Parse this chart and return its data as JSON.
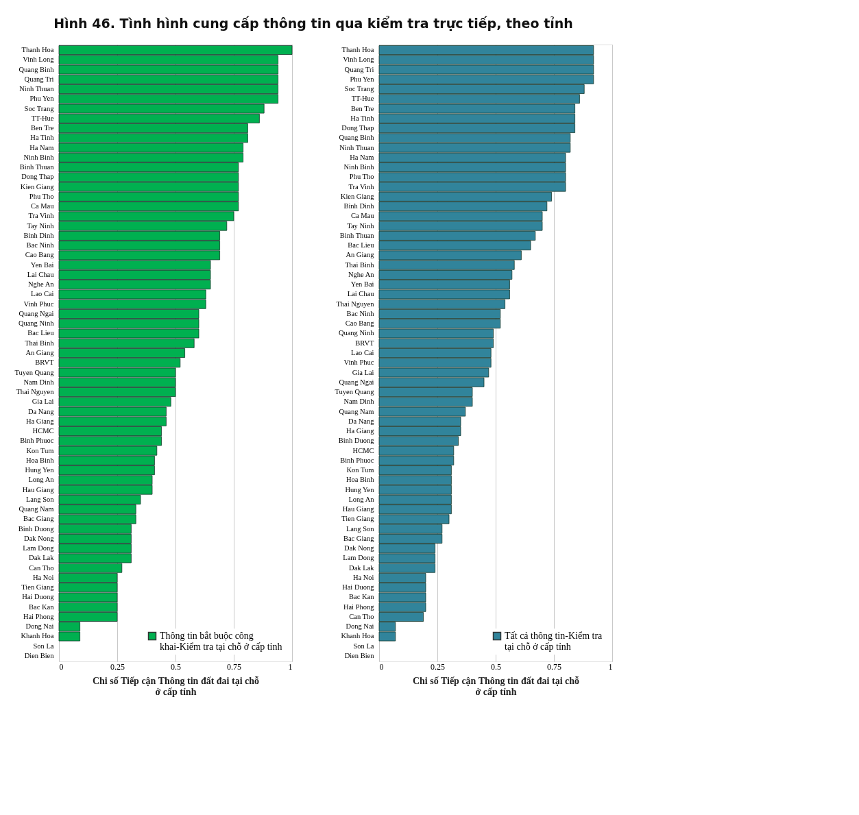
{
  "chart_data": [
    {
      "type": "bar",
      "orientation": "horizontal",
      "title": "Hình 46. Tình hình cung cấp thông tin qua kiểm tra trực tiếp, theo tỉnh",
      "xlabel": "Chi số Tiếp cận Thông tin đất đai tại chỗ ở cấp tỉnh",
      "grid": "x",
      "legend": "bottom right",
      "xlim": [
        0,
        1
      ],
      "xticks": [
        0,
        0.25,
        0.5,
        0.75,
        1
      ],
      "categories": [
        "Thanh Hoa",
        "Vinh Long",
        "Quang Binh",
        "Quang Tri",
        "Ninh Thuan",
        "Phu Yen",
        "Soc Trang",
        "TT-Hue",
        "Ben Tre",
        "Ha Tinh",
        "Ha Nam",
        "Ninh Binh",
        "Binh Thuan",
        "Dong Thap",
        "Kien Giang",
        "Phu Tho",
        "Ca Mau",
        "Tra Vinh",
        "Tay Ninh",
        "Binh Dinh",
        "Bac Ninh",
        "Cao Bang",
        "Yen Bai",
        "Lai Chau",
        "Nghe An",
        "Lao Cai",
        "Vinh Phuc",
        "Quang Ngai",
        "Quang Ninh",
        "Bac Lieu",
        "Thai Binh",
        "An Giang",
        "BRVT",
        "Tuyen Quang",
        "Nam Dinh",
        "Thai Nguyen",
        "Gia Lai",
        "Da Nang",
        "Ha Giang",
        "HCMC",
        "Binh Phuoc",
        "Kon Tum",
        "Hoa Binh",
        "Hung Yen",
        "Long An",
        "Hau Giang",
        "Lang Son",
        "Quang Nam",
        "Bac Giang",
        "Binh Duong",
        "Dak Nong",
        "Lam Dong",
        "Dak Lak",
        "Can Tho",
        "Ha Noi",
        "Tien Giang",
        "Hai Duong",
        "Bac Kan",
        "Hai Phong",
        "Dong Nai",
        "Khanh Hoa",
        "Son La",
        "Dien Bien"
      ],
      "series": [
        {
          "name": "Thông tin bắt buộc công khai-Kiểm tra tại chỗ ở cấp tỉnh",
          "color": "#00b050",
          "values": [
            1.0,
            0.94,
            0.94,
            0.94,
            0.94,
            0.94,
            0.88,
            0.86,
            0.81,
            0.81,
            0.79,
            0.79,
            0.77,
            0.77,
            0.77,
            0.77,
            0.77,
            0.75,
            0.72,
            0.69,
            0.69,
            0.69,
            0.65,
            0.65,
            0.65,
            0.63,
            0.63,
            0.6,
            0.6,
            0.6,
            0.58,
            0.54,
            0.52,
            0.5,
            0.5,
            0.5,
            0.48,
            0.46,
            0.46,
            0.44,
            0.44,
            0.42,
            0.41,
            0.41,
            0.4,
            0.4,
            0.35,
            0.33,
            0.33,
            0.31,
            0.31,
            0.31,
            0.31,
            0.27,
            0.25,
            0.25,
            0.25,
            0.25,
            0.25,
            0.09,
            0.09,
            0,
            0
          ]
        }
      ]
    },
    {
      "type": "bar",
      "orientation": "horizontal",
      "xlabel": "Chi số Tiếp cận Thông tin đất đai tại chỗ ở cấp tỉnh",
      "grid": "x",
      "legend": "bottom right",
      "xlim": [
        0,
        1
      ],
      "xticks": [
        0,
        0.25,
        0.5,
        0.75,
        1
      ],
      "categories": [
        "Thanh Hoa",
        "Vinh Long",
        "Quang Tri",
        "Phu Yen",
        "Soc Trang",
        "TT-Hue",
        "Ben Tre",
        "Ha Tinh",
        "Dong Thap",
        "Quang Binh",
        "Ninh Thuan",
        "Ha Nam",
        "Ninh Binh",
        "Phu Tho",
        "Tra Vinh",
        "Kien Giang",
        "Binh Dinh",
        "Ca Mau",
        "Tay Ninh",
        "Binh Thuan",
        "Bac Lieu",
        "An Giang",
        "Thai Binh",
        "Nghe An",
        "Yen Bai",
        "Lai Chau",
        "Thai Nguyen",
        "Bac Ninh",
        "Cao Bang",
        "Quang Ninh",
        "BRVT",
        "Lao Cai",
        "Vinh Phuc",
        "Gia Lai",
        "Quang Ngai",
        "Tuyen Quang",
        "Nam Dinh",
        "Quang Nam",
        "Da Nang",
        "Ha Giang",
        "Binh Duong",
        "HCMC",
        "Binh Phuoc",
        "Kon Tum",
        "Hoa Binh",
        "Hung Yen",
        "Long An",
        "Hau Giang",
        "Tien Giang",
        "Lang Son",
        "Bac Giang",
        "Dak Nong",
        "Lam Dong",
        "Dak Lak",
        "Ha Noi",
        "Hai Duong",
        "Bac Kan",
        "Hai Phong",
        "Can Tho",
        "Dong Nai",
        "Khanh Hoa",
        "Son La",
        "Dien Bien"
      ],
      "series": [
        {
          "name": "Tất cả thông tin-Kiểm tra tại chỗ ở cấp tỉnh",
          "color": "#31849b",
          "values": [
            0.92,
            0.92,
            0.92,
            0.92,
            0.88,
            0.86,
            0.84,
            0.84,
            0.84,
            0.82,
            0.82,
            0.8,
            0.8,
            0.8,
            0.8,
            0.74,
            0.72,
            0.7,
            0.7,
            0.67,
            0.65,
            0.61,
            0.58,
            0.57,
            0.56,
            0.56,
            0.54,
            0.52,
            0.52,
            0.49,
            0.49,
            0.48,
            0.48,
            0.47,
            0.45,
            0.4,
            0.4,
            0.37,
            0.35,
            0.35,
            0.34,
            0.32,
            0.32,
            0.31,
            0.31,
            0.31,
            0.31,
            0.31,
            0.3,
            0.27,
            0.27,
            0.24,
            0.24,
            0.24,
            0.2,
            0.2,
            0.2,
            0.2,
            0.19,
            0.07,
            0.07,
            0,
            0
          ]
        }
      ]
    }
  ]
}
